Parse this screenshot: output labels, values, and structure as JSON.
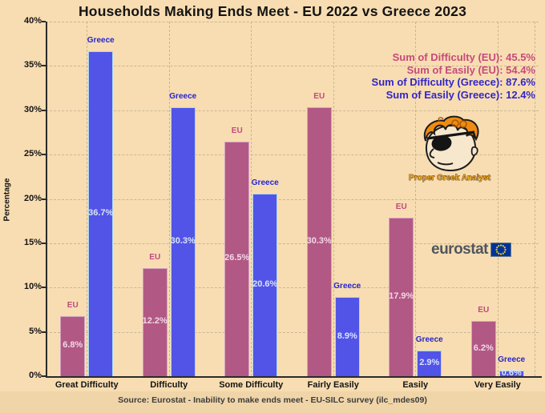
{
  "title": "Households Making Ends Meet - EU 2022 vs Greece 2023",
  "ylabel": "Percentage",
  "source": "Source: Eurostat - Inability to make ends meet - EU-SILC survey (ilc_mdes09)",
  "annotations": [
    {
      "text": "Sum of Difficulty (EU): 45.5%",
      "color": "#c64a7a"
    },
    {
      "text": "Sum of Easily (EU): 54.4%",
      "color": "#c64a7a"
    },
    {
      "text": "Sum of Difficulty (Greece): 87.6%",
      "color": "#3226c8"
    },
    {
      "text": "Sum of Easily (Greece): 12.4%",
      "color": "#3226c8"
    }
  ],
  "logos": {
    "eurostat_text": "eurostat",
    "mascot_caption": "Proper Greek Analyst"
  },
  "colors": {
    "background": "#f8ddb2",
    "eu_bar": "#b25884",
    "eu_bar_border": "#d4a3c2",
    "eu_label": "#c04a7c",
    "eu_value_text": "#f1d9e6",
    "greece_bar": "#5154e6",
    "greece_bar_border": "#a9d9ec",
    "greece_label": "#2525cd",
    "greece_value_text": "#dbe4fb",
    "gridline": "#c9b695",
    "axis": "#2a2a2a"
  },
  "chart_data": {
    "type": "bar",
    "categories": [
      "Great Difficulty",
      "Difficulty",
      "Some Difficulty",
      "Fairly Easily",
      "Easily",
      "Very Easily"
    ],
    "series": [
      {
        "name": "EU",
        "values": [
          6.8,
          12.2,
          26.5,
          30.3,
          17.9,
          6.2
        ]
      },
      {
        "name": "Greece",
        "values": [
          36.7,
          30.3,
          20.6,
          8.9,
          2.9,
          0.6
        ]
      }
    ],
    "value_label_format": "percent_one_decimal",
    "ylim": [
      0,
      40
    ],
    "ytick_step": 5,
    "ytick_suffix": "%",
    "grid": true,
    "legend_position": "above-bars"
  }
}
